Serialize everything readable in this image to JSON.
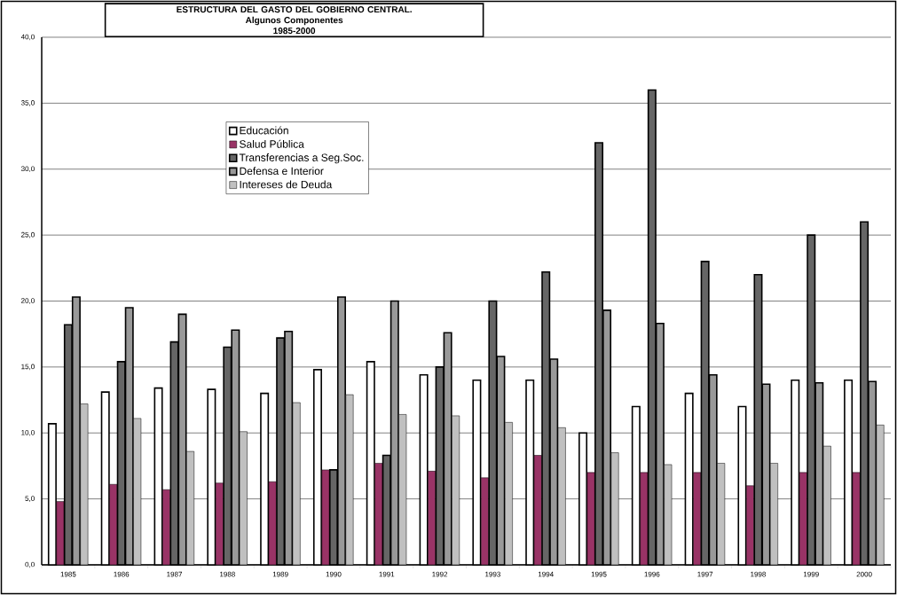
{
  "chart_data": {
    "type": "bar",
    "title": "ESTRUCTURA DEL GASTO DEL GOBIERNO CENTRAL.",
    "subtitle": "Algunos Componentes",
    "annotations": [
      "1985-2000"
    ],
    "categories": [
      "1985",
      "1986",
      "1987",
      "1988",
      "1989",
      "1990",
      "1991",
      "1992",
      "1993",
      "1994",
      "1995",
      "1996",
      "1997",
      "1998",
      "1999",
      "2000"
    ],
    "series": [
      {
        "name": "Educación",
        "color": "#ffffff",
        "values": [
          10.7,
          13.1,
          13.4,
          13.3,
          13.0,
          14.8,
          15.4,
          14.4,
          14.0,
          14.0,
          10.0,
          12.0,
          13.0,
          12.0,
          14.0,
          14.0
        ]
      },
      {
        "name": "Salud Pública",
        "color": "#993366",
        "values": [
          4.8,
          6.1,
          5.7,
          6.2,
          6.3,
          7.2,
          7.7,
          7.1,
          6.6,
          8.3,
          7.0,
          7.0,
          7.0,
          6.0,
          7.0,
          7.0
        ]
      },
      {
        "name": "Transferencias a Seg.Soc.",
        "color": "#666666",
        "values": [
          18.2,
          15.4,
          16.9,
          16.5,
          17.2,
          7.2,
          8.3,
          15.0,
          20.0,
          22.2,
          32.0,
          36.0,
          23.0,
          22.0,
          25.0,
          26.0
        ]
      },
      {
        "name": "Defensa e Interior",
        "color": "#999999",
        "values": [
          20.3,
          19.5,
          19.0,
          17.8,
          17.7,
          20.3,
          20.0,
          17.6,
          15.8,
          15.6,
          19.3,
          18.3,
          14.4,
          13.7,
          13.8,
          13.9
        ]
      },
      {
        "name": "Intereses de Deuda",
        "color": "#c0c0c0",
        "values": [
          12.2,
          11.1,
          8.6,
          10.1,
          12.3,
          12.9,
          11.4,
          11.3,
          10.8,
          10.4,
          8.5,
          7.6,
          7.7,
          7.7,
          9.0,
          10.6
        ]
      }
    ],
    "ylim": [
      0,
      40
    ],
    "yticks": [
      {
        "value": 0,
        "label": "0,0"
      },
      {
        "value": 5,
        "label": "5,0"
      },
      {
        "value": 10,
        "label": "10,0"
      },
      {
        "value": 15,
        "label": "15,0"
      },
      {
        "value": 20,
        "label": "20,0"
      },
      {
        "value": 25,
        "label": "25,0"
      },
      {
        "value": 30,
        "label": "30,0"
      },
      {
        "value": 35,
        "label": "35,0"
      },
      {
        "value": 40,
        "label": "40,0"
      }
    ],
    "grid": "y",
    "legend": "top"
  }
}
